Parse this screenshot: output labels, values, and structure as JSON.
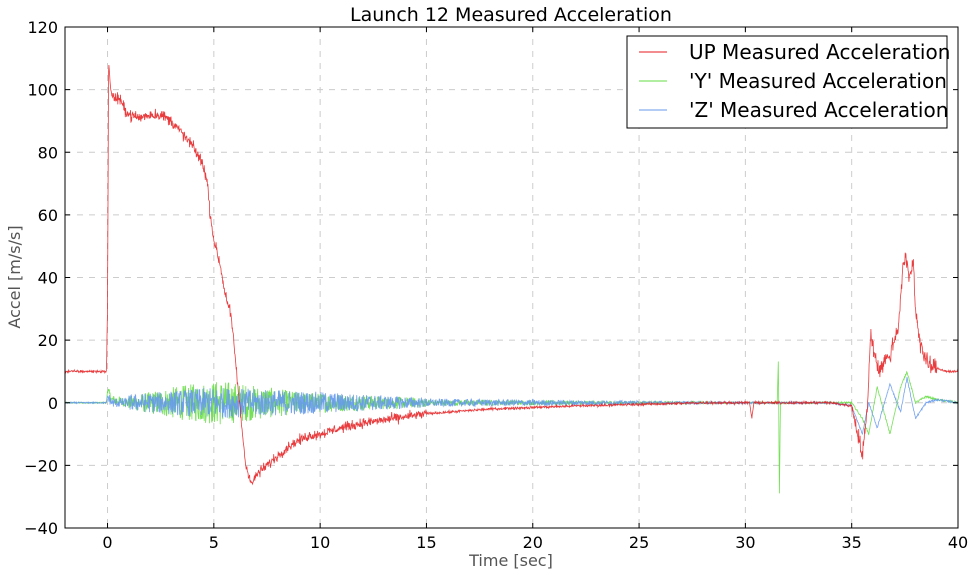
{
  "chart_data": {
    "type": "line",
    "title": "Launch 12 Measured Acceleration",
    "xlabel": "Time [sec]",
    "ylabel": "Accel [m/s/s]",
    "xlim": [
      -2,
      40
    ],
    "ylim": [
      -40,
      120
    ],
    "xticks": [
      0,
      5,
      10,
      15,
      20,
      25,
      30,
      35,
      40
    ],
    "yticks": [
      -40,
      -20,
      0,
      20,
      40,
      60,
      80,
      100,
      120
    ],
    "xtick_labels": [
      "0",
      "5",
      "10",
      "15",
      "20",
      "25",
      "30",
      "35",
      "40"
    ],
    "ytick_labels": [
      "−40",
      "−20",
      "0",
      "20",
      "40",
      "60",
      "80",
      "100",
      "120"
    ],
    "grid": true,
    "legend_position": "top-right",
    "series": [
      {
        "name": "UP Measured Acceleration",
        "color": "#e41a1c",
        "noise": 1.0,
        "points": [
          [
            -2,
            10
          ],
          [
            -0.05,
            10
          ],
          [
            0,
            30
          ],
          [
            0.05,
            109
          ],
          [
            0.15,
            100
          ],
          [
            0.3,
            97
          ],
          [
            0.5,
            97.5
          ],
          [
            0.7,
            95
          ],
          [
            1,
            92
          ],
          [
            1.5,
            91
          ],
          [
            2,
            92
          ],
          [
            2.5,
            92
          ],
          [
            3,
            90
          ],
          [
            3.5,
            86
          ],
          [
            4,
            82
          ],
          [
            4.5,
            76
          ],
          [
            4.7,
            70
          ],
          [
            4.8,
            62
          ],
          [
            5,
            52
          ],
          [
            5.3,
            44
          ],
          [
            5.5,
            36
          ],
          [
            5.8,
            28
          ],
          [
            6,
            15
          ],
          [
            6.2,
            0
          ],
          [
            6.5,
            -20
          ],
          [
            6.8,
            -26
          ],
          [
            7,
            -23
          ],
          [
            7.5,
            -20
          ],
          [
            8,
            -17
          ],
          [
            8.5,
            -14
          ],
          [
            9,
            -12
          ],
          [
            9.5,
            -10.5
          ],
          [
            10,
            -10
          ],
          [
            11,
            -8
          ],
          [
            12,
            -6.5
          ],
          [
            13,
            -5.5
          ],
          [
            14,
            -4.5
          ],
          [
            15,
            -3.5
          ],
          [
            16,
            -3
          ],
          [
            17,
            -2.5
          ],
          [
            18,
            -2
          ],
          [
            20,
            -1.5
          ],
          [
            22,
            -1
          ],
          [
            25,
            -0.5
          ],
          [
            28,
            0
          ],
          [
            30,
            0
          ],
          [
            30.2,
            0
          ],
          [
            30.3,
            -5
          ],
          [
            30.4,
            0
          ],
          [
            31,
            0
          ],
          [
            34,
            0
          ],
          [
            35,
            -1
          ],
          [
            35.3,
            -10
          ],
          [
            35.5,
            -17
          ],
          [
            35.7,
            -5
          ],
          [
            35.9,
            22
          ],
          [
            36.1,
            15
          ],
          [
            36.3,
            10
          ],
          [
            36.5,
            13
          ],
          [
            36.8,
            15
          ],
          [
            37.2,
            25
          ],
          [
            37.4,
            42
          ],
          [
            37.5,
            47
          ],
          [
            37.7,
            40
          ],
          [
            37.9,
            45
          ],
          [
            38,
            30
          ],
          [
            38.2,
            20
          ],
          [
            38.4,
            15
          ],
          [
            38.6,
            12
          ],
          [
            39,
            11
          ],
          [
            39.5,
            10
          ],
          [
            40,
            10
          ]
        ]
      },
      {
        "name": "'Y' Measured Acceleration",
        "color": "#66dd44",
        "noise": 0.0,
        "points": [
          [
            -2,
            0
          ],
          [
            -0.05,
            0
          ],
          [
            0,
            4
          ],
          [
            0.2,
            1
          ],
          [
            1,
            0
          ],
          [
            2,
            0
          ],
          [
            3,
            0
          ],
          [
            4,
            0
          ],
          [
            5,
            0
          ],
          [
            6,
            0
          ],
          [
            7,
            0
          ],
          [
            8,
            0
          ],
          [
            9,
            0
          ],
          [
            10,
            0
          ],
          [
            12,
            0
          ],
          [
            14,
            0
          ],
          [
            16,
            0
          ],
          [
            20,
            0
          ],
          [
            25,
            0
          ],
          [
            30,
            0
          ],
          [
            31.5,
            0
          ],
          [
            31.55,
            14
          ],
          [
            31.6,
            -29
          ],
          [
            31.65,
            0
          ],
          [
            34,
            0
          ],
          [
            35,
            0
          ],
          [
            35.5,
            -5
          ],
          [
            35.8,
            -10
          ],
          [
            36.2,
            5
          ],
          [
            36.8,
            -10
          ],
          [
            37.3,
            5
          ],
          [
            37.6,
            10
          ],
          [
            38,
            0
          ],
          [
            38.5,
            2
          ],
          [
            39,
            1
          ],
          [
            40,
            0
          ]
        ]
      },
      {
        "name": "'Z' Measured Acceleration",
        "color": "#6699ee",
        "noise": 0.0,
        "points": [
          [
            -2,
            0
          ],
          [
            -0.05,
            0
          ],
          [
            0,
            2
          ],
          [
            0.2,
            0
          ],
          [
            1,
            0
          ],
          [
            2,
            0
          ],
          [
            3,
            0
          ],
          [
            4,
            0
          ],
          [
            5,
            0
          ],
          [
            6,
            0
          ],
          [
            7,
            0
          ],
          [
            8,
            0
          ],
          [
            9,
            0
          ],
          [
            10,
            0
          ],
          [
            12,
            0
          ],
          [
            14,
            0
          ],
          [
            16,
            0
          ],
          [
            20,
            0
          ],
          [
            25,
            0
          ],
          [
            30,
            0
          ],
          [
            31.5,
            0
          ],
          [
            32,
            0
          ],
          [
            34,
            0
          ],
          [
            35,
            -1
          ],
          [
            35.5,
            -10
          ],
          [
            35.8,
            0
          ],
          [
            36.2,
            -8
          ],
          [
            36.8,
            6
          ],
          [
            37.3,
            -3
          ],
          [
            37.6,
            8
          ],
          [
            38,
            -5
          ],
          [
            38.5,
            0
          ],
          [
            39,
            1
          ],
          [
            40,
            0
          ]
        ]
      }
    ]
  }
}
